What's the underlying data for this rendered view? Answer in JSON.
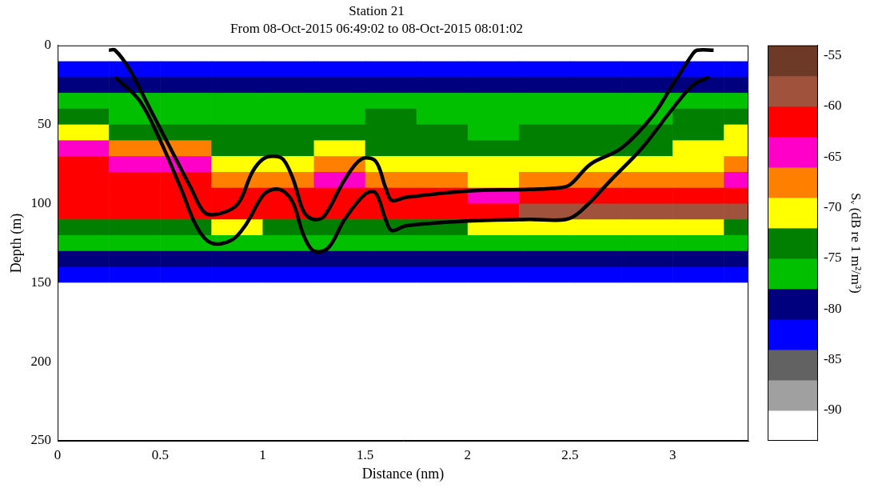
{
  "chart_data": {
    "type": "heatmap",
    "title": "Station 21",
    "subtitle": "From 08-Oct-2015 06:49:02 to 08-Oct-2015 08:01:02",
    "x_label": "Distance (nm)",
    "y_label": "Depth (m)",
    "xlim": [
      0,
      3.37
    ],
    "xticks": [
      0,
      0.5,
      1,
      1.5,
      2,
      2.5,
      3
    ],
    "ylim": [
      0,
      250
    ],
    "yticks": [
      0,
      50,
      100,
      150,
      200,
      250
    ],
    "grid": false,
    "x_edges": [
      0,
      0.25,
      0.5,
      0.75,
      1,
      1.25,
      1.5,
      1.75,
      2,
      2.25,
      2.5,
      2.75,
      3,
      3.25,
      3.37
    ],
    "y_edges": [
      0,
      10,
      20,
      30,
      40,
      50,
      60,
      70,
      80,
      90,
      100,
      110,
      120,
      130,
      140,
      150,
      160,
      170,
      180,
      190,
      200,
      210,
      220,
      230,
      240,
      250
    ],
    "cells": [
      [
        -91,
        -91,
        -91,
        -91,
        -91,
        -91,
        -91,
        -91,
        -91,
        -91,
        -91,
        -91,
        -91,
        -91
      ],
      [
        -82,
        -83,
        -83,
        -82,
        -82,
        -83,
        -82,
        -83,
        -82,
        -83,
        -82,
        -82,
        -83,
        -82
      ],
      [
        -79,
        -80,
        -80,
        -79,
        -80,
        -79,
        -80,
        -79,
        -80,
        -79,
        -80,
        -79,
        -80,
        -79
      ],
      [
        -77,
        -78,
        -77,
        -78,
        -77,
        -78,
        -77,
        -77,
        -78,
        -77,
        -77,
        -78,
        -77,
        -77
      ],
      [
        -74,
        -76,
        -76,
        -77,
        -76,
        -76,
        -75,
        -76,
        -76,
        -77,
        -76,
        -76,
        -75,
        -74
      ],
      [
        -71,
        -74,
        -74,
        -75,
        -75,
        -74,
        -75,
        -75,
        -76,
        -75,
        -75,
        -75,
        -74,
        -72
      ],
      [
        -66,
        -69,
        -68,
        -73,
        -73,
        -72,
        -73,
        -74,
        -74,
        -74,
        -73,
        -73,
        -72,
        -70
      ],
      [
        -62,
        -64,
        -65,
        -70,
        -70,
        -69,
        -71,
        -72,
        -72,
        -72,
        -71,
        -71,
        -70,
        -68
      ],
      [
        -61,
        -62,
        -62,
        -67,
        -67,
        -66,
        -68,
        -69,
        -70,
        -69,
        -68,
        -68,
        -67,
        -66
      ],
      [
        -62,
        -61,
        -61,
        -62,
        -63,
        -62,
        -63,
        -63,
        -64,
        -63,
        -62,
        -61,
        -61,
        -61
      ],
      [
        -62,
        -61,
        -61,
        -61,
        -61,
        -61,
        -61,
        -61,
        -61,
        -59,
        -58,
        -58,
        -58,
        -59
      ],
      [
        -73,
        -73,
        -73,
        -72,
        -73,
        -73,
        -73,
        -73,
        -72,
        -72,
        -71,
        -71,
        -72,
        -73
      ],
      [
        -77,
        -77,
        -76,
        -76,
        -76,
        -76,
        -76,
        -76,
        -76,
        -76,
        -76,
        -76,
        -76,
        -77
      ],
      [
        -80,
        -80,
        -80,
        -80,
        -80,
        -80,
        -80,
        -79,
        -79,
        -79,
        -79,
        -79,
        -79,
        -79
      ],
      [
        -83,
        -83,
        -83,
        -83,
        -83,
        -83,
        -83,
        -83,
        -83,
        -82,
        -82,
        -82,
        -82,
        -82
      ],
      [
        -91,
        -91,
        -91,
        -91,
        -91,
        -91,
        -91,
        -91,
        -91,
        -91,
        -91,
        -91,
        -91,
        -91
      ],
      [
        -91,
        -91,
        -91,
        -91,
        -91,
        -91,
        -91,
        -91,
        -91,
        -91,
        -91,
        -91,
        -91,
        -91
      ],
      [
        -91,
        -91,
        -91,
        -91,
        -91,
        -91,
        -91,
        -91,
        -91,
        -91,
        -91,
        -91,
        -91,
        -91
      ],
      [
        -91,
        -91,
        -91,
        -91,
        -91,
        -91,
        -91,
        -91,
        -91,
        -91,
        -91,
        -91,
        -91,
        -91
      ],
      [
        -91,
        -91,
        -91,
        -91,
        -91,
        -91,
        -91,
        -91,
        -91,
        -91,
        -91,
        -91,
        -91,
        -91
      ],
      [
        -91,
        -91,
        -91,
        -91,
        -91,
        -91,
        -91,
        -91,
        -91,
        -91,
        -91,
        -91,
        -91,
        -91
      ],
      [
        -91,
        -91,
        -91,
        -91,
        -91,
        -91,
        -91,
        -91,
        -91,
        -91,
        -91,
        -91,
        -91,
        -91
      ],
      [
        -91,
        -91,
        -91,
        -91,
        -91,
        -91,
        -91,
        -91,
        -91,
        -91,
        -91,
        -91,
        -91,
        -91
      ],
      [
        -91,
        -91,
        -91,
        -91,
        -91,
        -91,
        -91,
        -91,
        -91,
        -91,
        -91,
        -91,
        -91,
        -91
      ],
      [
        -91,
        -91,
        -91,
        -91,
        -91,
        -91,
        -91,
        -91,
        -91,
        -91,
        -91,
        -91,
        -91,
        -91
      ]
    ],
    "colorbar": {
      "label": "Sᵥ (dB re 1 m²/m³)",
      "range": [
        -93,
        -54
      ],
      "ticks": [
        -90,
        -85,
        -80,
        -75,
        -70,
        -65,
        -60,
        -55
      ],
      "colors": [
        "#ffffff",
        "#a0a0a0",
        "#626262",
        "#0000ff",
        "#00007f",
        "#00c000",
        "#007f00",
        "#ffff00",
        "#ff8000",
        "#ff00c8",
        "#ff0000",
        "#a0523c",
        "#6e3a28"
      ]
    },
    "series": [
      {
        "type": "line",
        "color": "#000000",
        "marker": "none",
        "line_style": "solid",
        "x": [
          0.25,
          0.28,
          0.35,
          0.45,
          0.55,
          0.65,
          0.72,
          0.8,
          0.88,
          0.95,
          1.0,
          1.05,
          1.1,
          1.15,
          1.2,
          1.25,
          1.3,
          1.4,
          1.48,
          1.55,
          1.6,
          1.63,
          1.7,
          2.0,
          2.3,
          2.45,
          2.5,
          2.6,
          2.75,
          2.9,
          3.0,
          3.1,
          3.12,
          3.2
        ],
        "values": [
          3,
          3,
          15,
          40,
          65,
          90,
          106,
          106,
          100,
          80,
          72,
          70,
          72,
          85,
          105,
          110,
          108,
          85,
          72,
          73,
          90,
          98,
          96,
          92,
          91,
          90,
          88,
          75,
          65,
          45,
          25,
          5,
          3,
          3
        ]
      },
      {
        "type": "line",
        "color": "#000000",
        "marker": "none",
        "line_style": "solid",
        "x": [
          0.28,
          0.4,
          0.5,
          0.6,
          0.68,
          0.75,
          0.85,
          0.92,
          1.0,
          1.05,
          1.1,
          1.15,
          1.2,
          1.25,
          1.32,
          1.4,
          1.5,
          1.55,
          1.6,
          1.63,
          1.7,
          2.0,
          2.3,
          2.48,
          2.55,
          2.7,
          2.85,
          3.0,
          3.1,
          3.18
        ],
        "values": [
          20,
          35,
          60,
          90,
          115,
          125,
          123,
          113,
          95,
          91,
          92,
          100,
          120,
          130,
          128,
          110,
          94,
          93,
          110,
          117,
          114,
          111,
          110,
          110,
          105,
          85,
          65,
          40,
          25,
          20
        ]
      }
    ]
  }
}
